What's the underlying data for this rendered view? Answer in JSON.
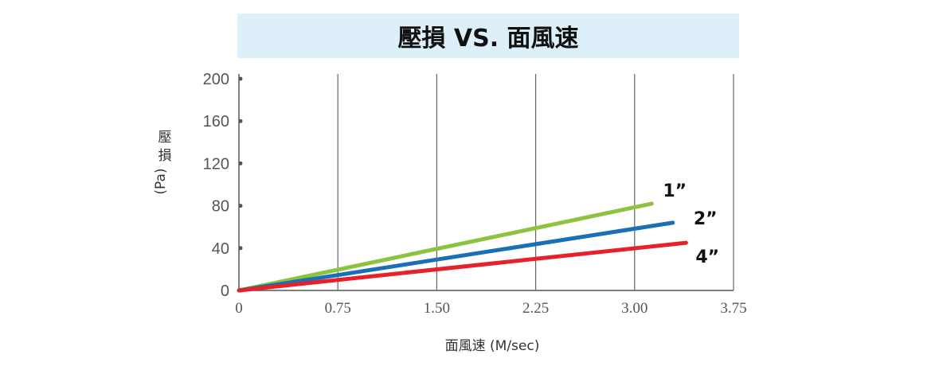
{
  "chart_data": {
    "type": "line",
    "title": "壓損 VS. 面風速",
    "xlabel": "面風速 (M/sec)",
    "ylabel_chars": [
      "壓",
      "損"
    ],
    "ylabel_unit": "(Pa)",
    "xlim": [
      0,
      3.75
    ],
    "ylim": [
      0,
      200
    ],
    "xticks": [
      {
        "v": 0,
        "label": "0"
      },
      {
        "v": 0.75,
        "label": "0.75"
      },
      {
        "v": 1.5,
        "label": "1.50"
      },
      {
        "v": 2.25,
        "label": "2.25"
      },
      {
        "v": 3.0,
        "label": "3.00"
      },
      {
        "v": 3.75,
        "label": "3.75"
      }
    ],
    "yticks": [
      {
        "v": 0,
        "label": "0"
      },
      {
        "v": 40,
        "label": "40"
      },
      {
        "v": 80,
        "label": "80"
      },
      {
        "v": 120,
        "label": "120"
      },
      {
        "v": 160,
        "label": "160"
      },
      {
        "v": 200,
        "label": "200"
      }
    ],
    "grid": "vertical",
    "series": [
      {
        "name": "1”",
        "color": "#8cc43f",
        "x": [
          0,
          3.13
        ],
        "y": [
          0,
          82
        ]
      },
      {
        "name": "2”",
        "color": "#1a6fb5",
        "x": [
          0,
          3.29
        ],
        "y": [
          0,
          64
        ]
      },
      {
        "name": "4”",
        "color": "#e8202a",
        "x": [
          0,
          3.39
        ],
        "y": [
          0,
          45
        ]
      }
    ]
  }
}
